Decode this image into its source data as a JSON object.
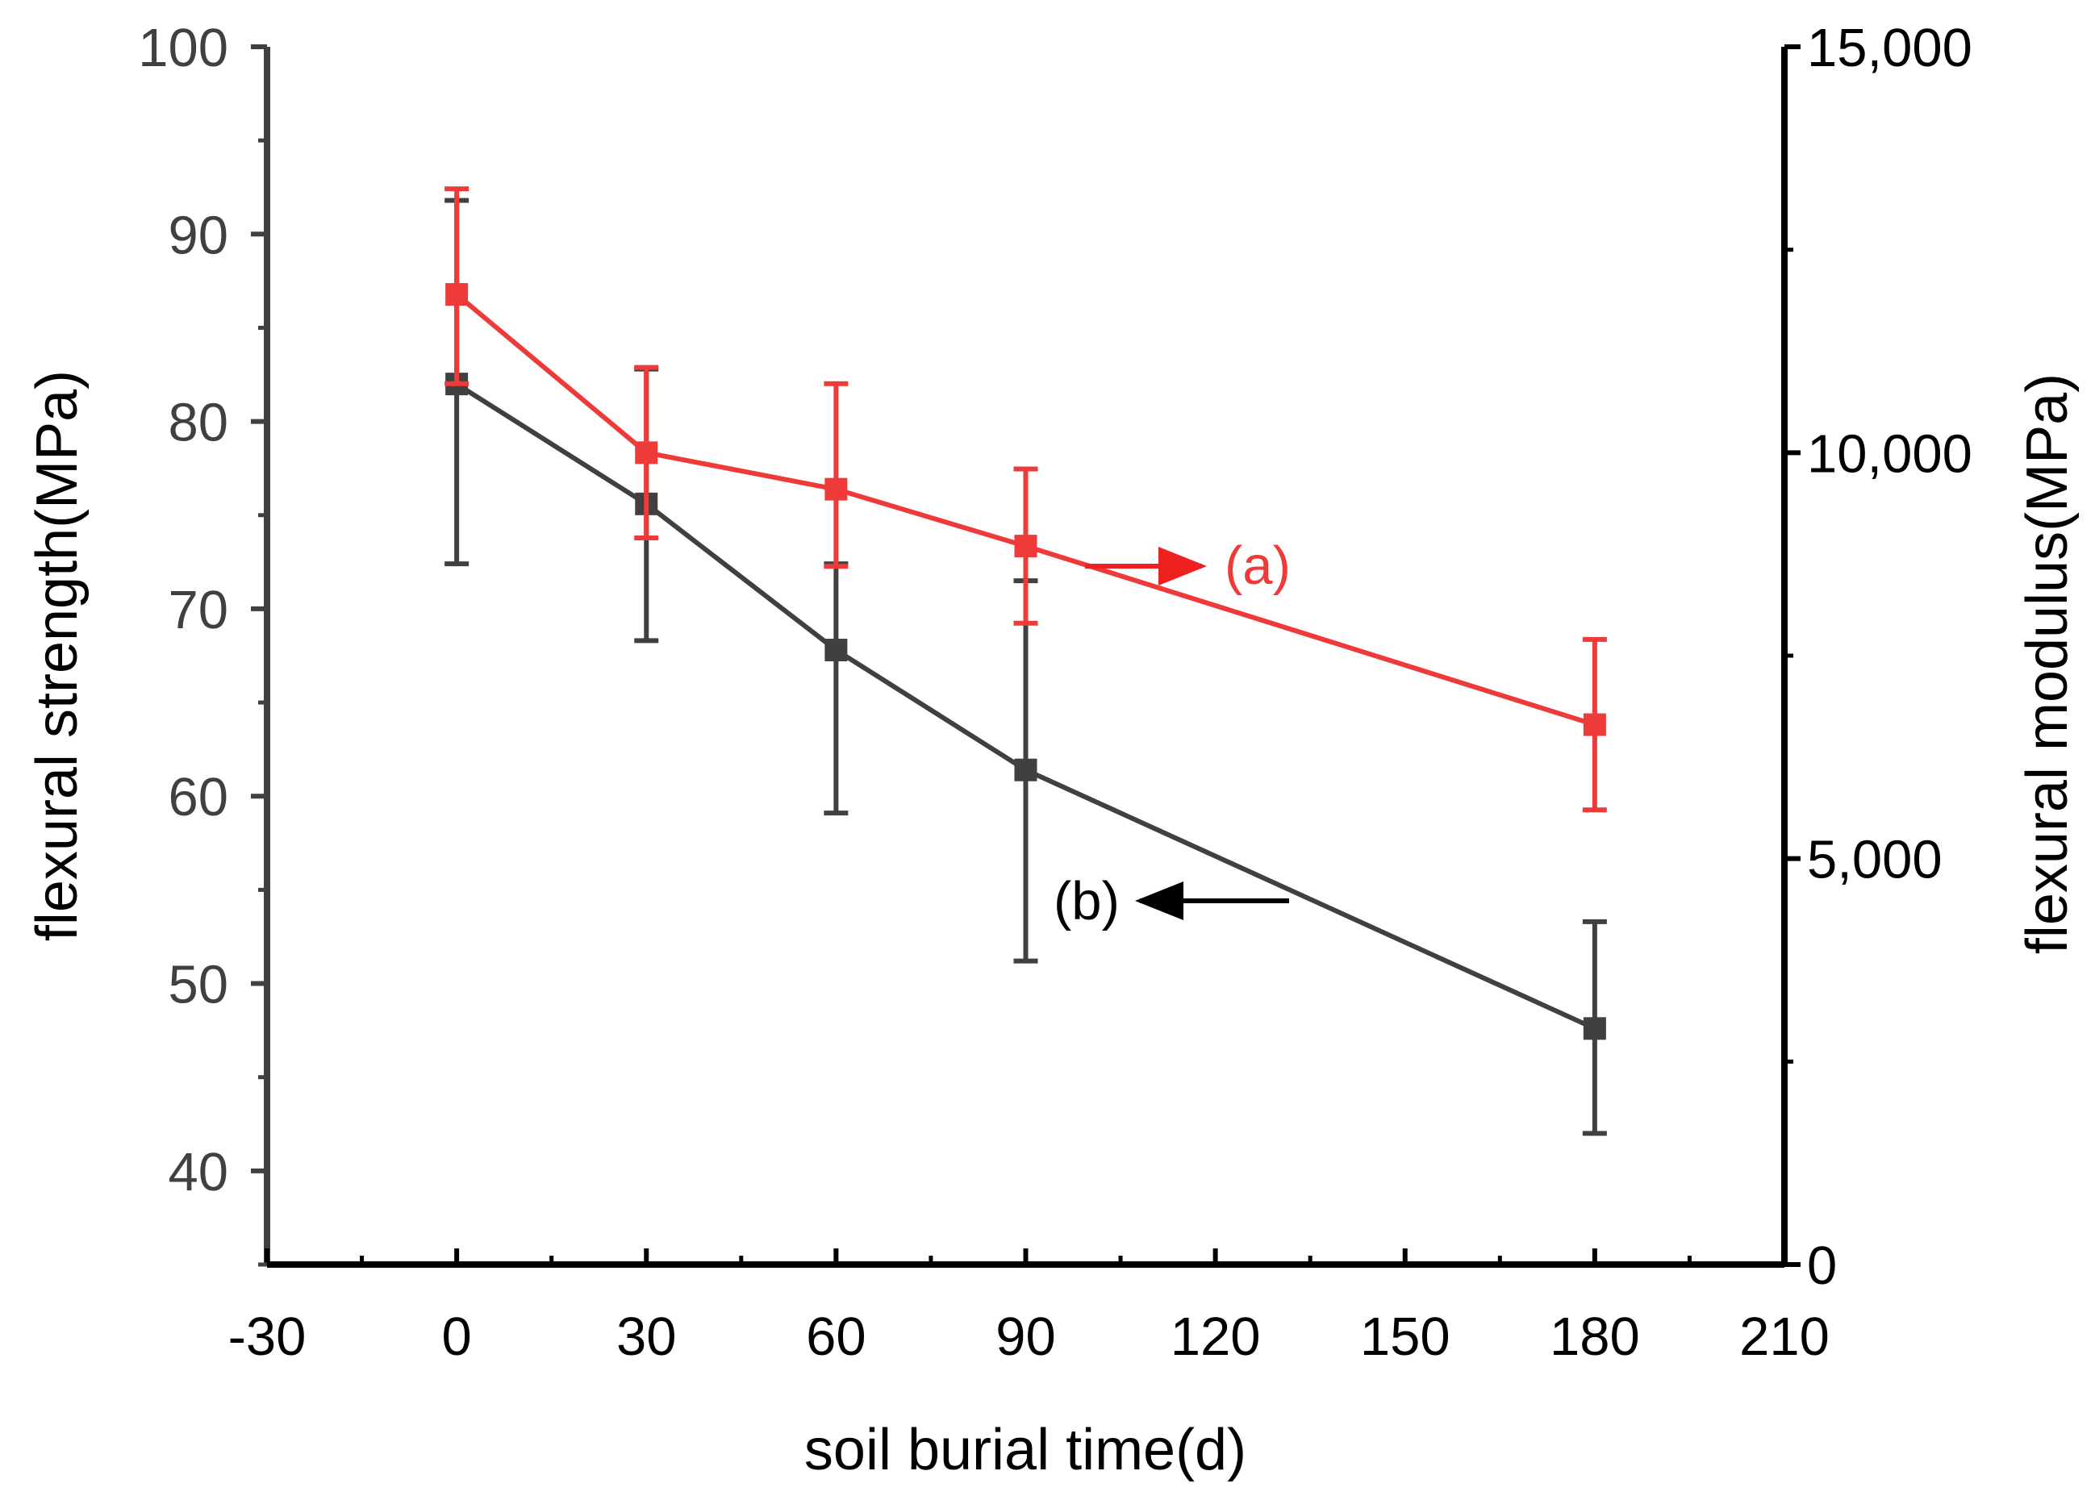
{
  "chart_data": {
    "type": "line",
    "xlabel": "soil burial time(d)",
    "ylabel_left": "flexural strength(MPa)",
    "ylabel_right": "flexural modulus(MPa)",
    "xlim": [
      -30,
      210
    ],
    "xticks": [
      -30,
      0,
      30,
      60,
      90,
      120,
      150,
      180,
      210
    ],
    "xtick_labels": [
      "-30",
      "0",
      "30",
      "60",
      "90",
      "120",
      "150",
      "180",
      "210"
    ],
    "ylim_left": [
      35,
      100
    ],
    "yticks_left": [
      40,
      50,
      60,
      70,
      80,
      90,
      100
    ],
    "ytick_labels_left": [
      "40",
      "50",
      "60",
      "70",
      "80",
      "90",
      "100"
    ],
    "ylim_right": [
      0,
      15000
    ],
    "yticks_right": [
      0,
      5000,
      10000,
      15000
    ],
    "ytick_labels_right": [
      "0",
      "5,000",
      "10,000",
      "15,000"
    ],
    "series": [
      {
        "name": "(a)",
        "axis": "right",
        "color": "#ef3a3a",
        "x": [
          0,
          30,
          60,
          90,
          180
        ],
        "values": [
          11950,
          10000,
          9550,
          8850,
          6650
        ],
        "err_low": [
          1100,
          1050,
          950,
          950,
          1050
        ],
        "err_high": [
          1300,
          1050,
          1300,
          950,
          1050
        ]
      },
      {
        "name": "(b)",
        "axis": "left",
        "color": "#404040",
        "x": [
          0,
          30,
          60,
          90,
          180
        ],
        "values": [
          82.0,
          75.6,
          67.8,
          61.4,
          47.6
        ],
        "err_low": [
          9.6,
          7.3,
          8.7,
          10.2,
          5.6
        ],
        "err_high": [
          9.8,
          7.2,
          4.6,
          10.1,
          5.7
        ]
      }
    ],
    "annotations": [
      {
        "text": "(a)",
        "series": "(a)",
        "arrow": "right",
        "color": "#ef3a3a"
      },
      {
        "text": "(b)",
        "series": "(b)",
        "arrow": "left",
        "color": "#000000"
      }
    ]
  }
}
